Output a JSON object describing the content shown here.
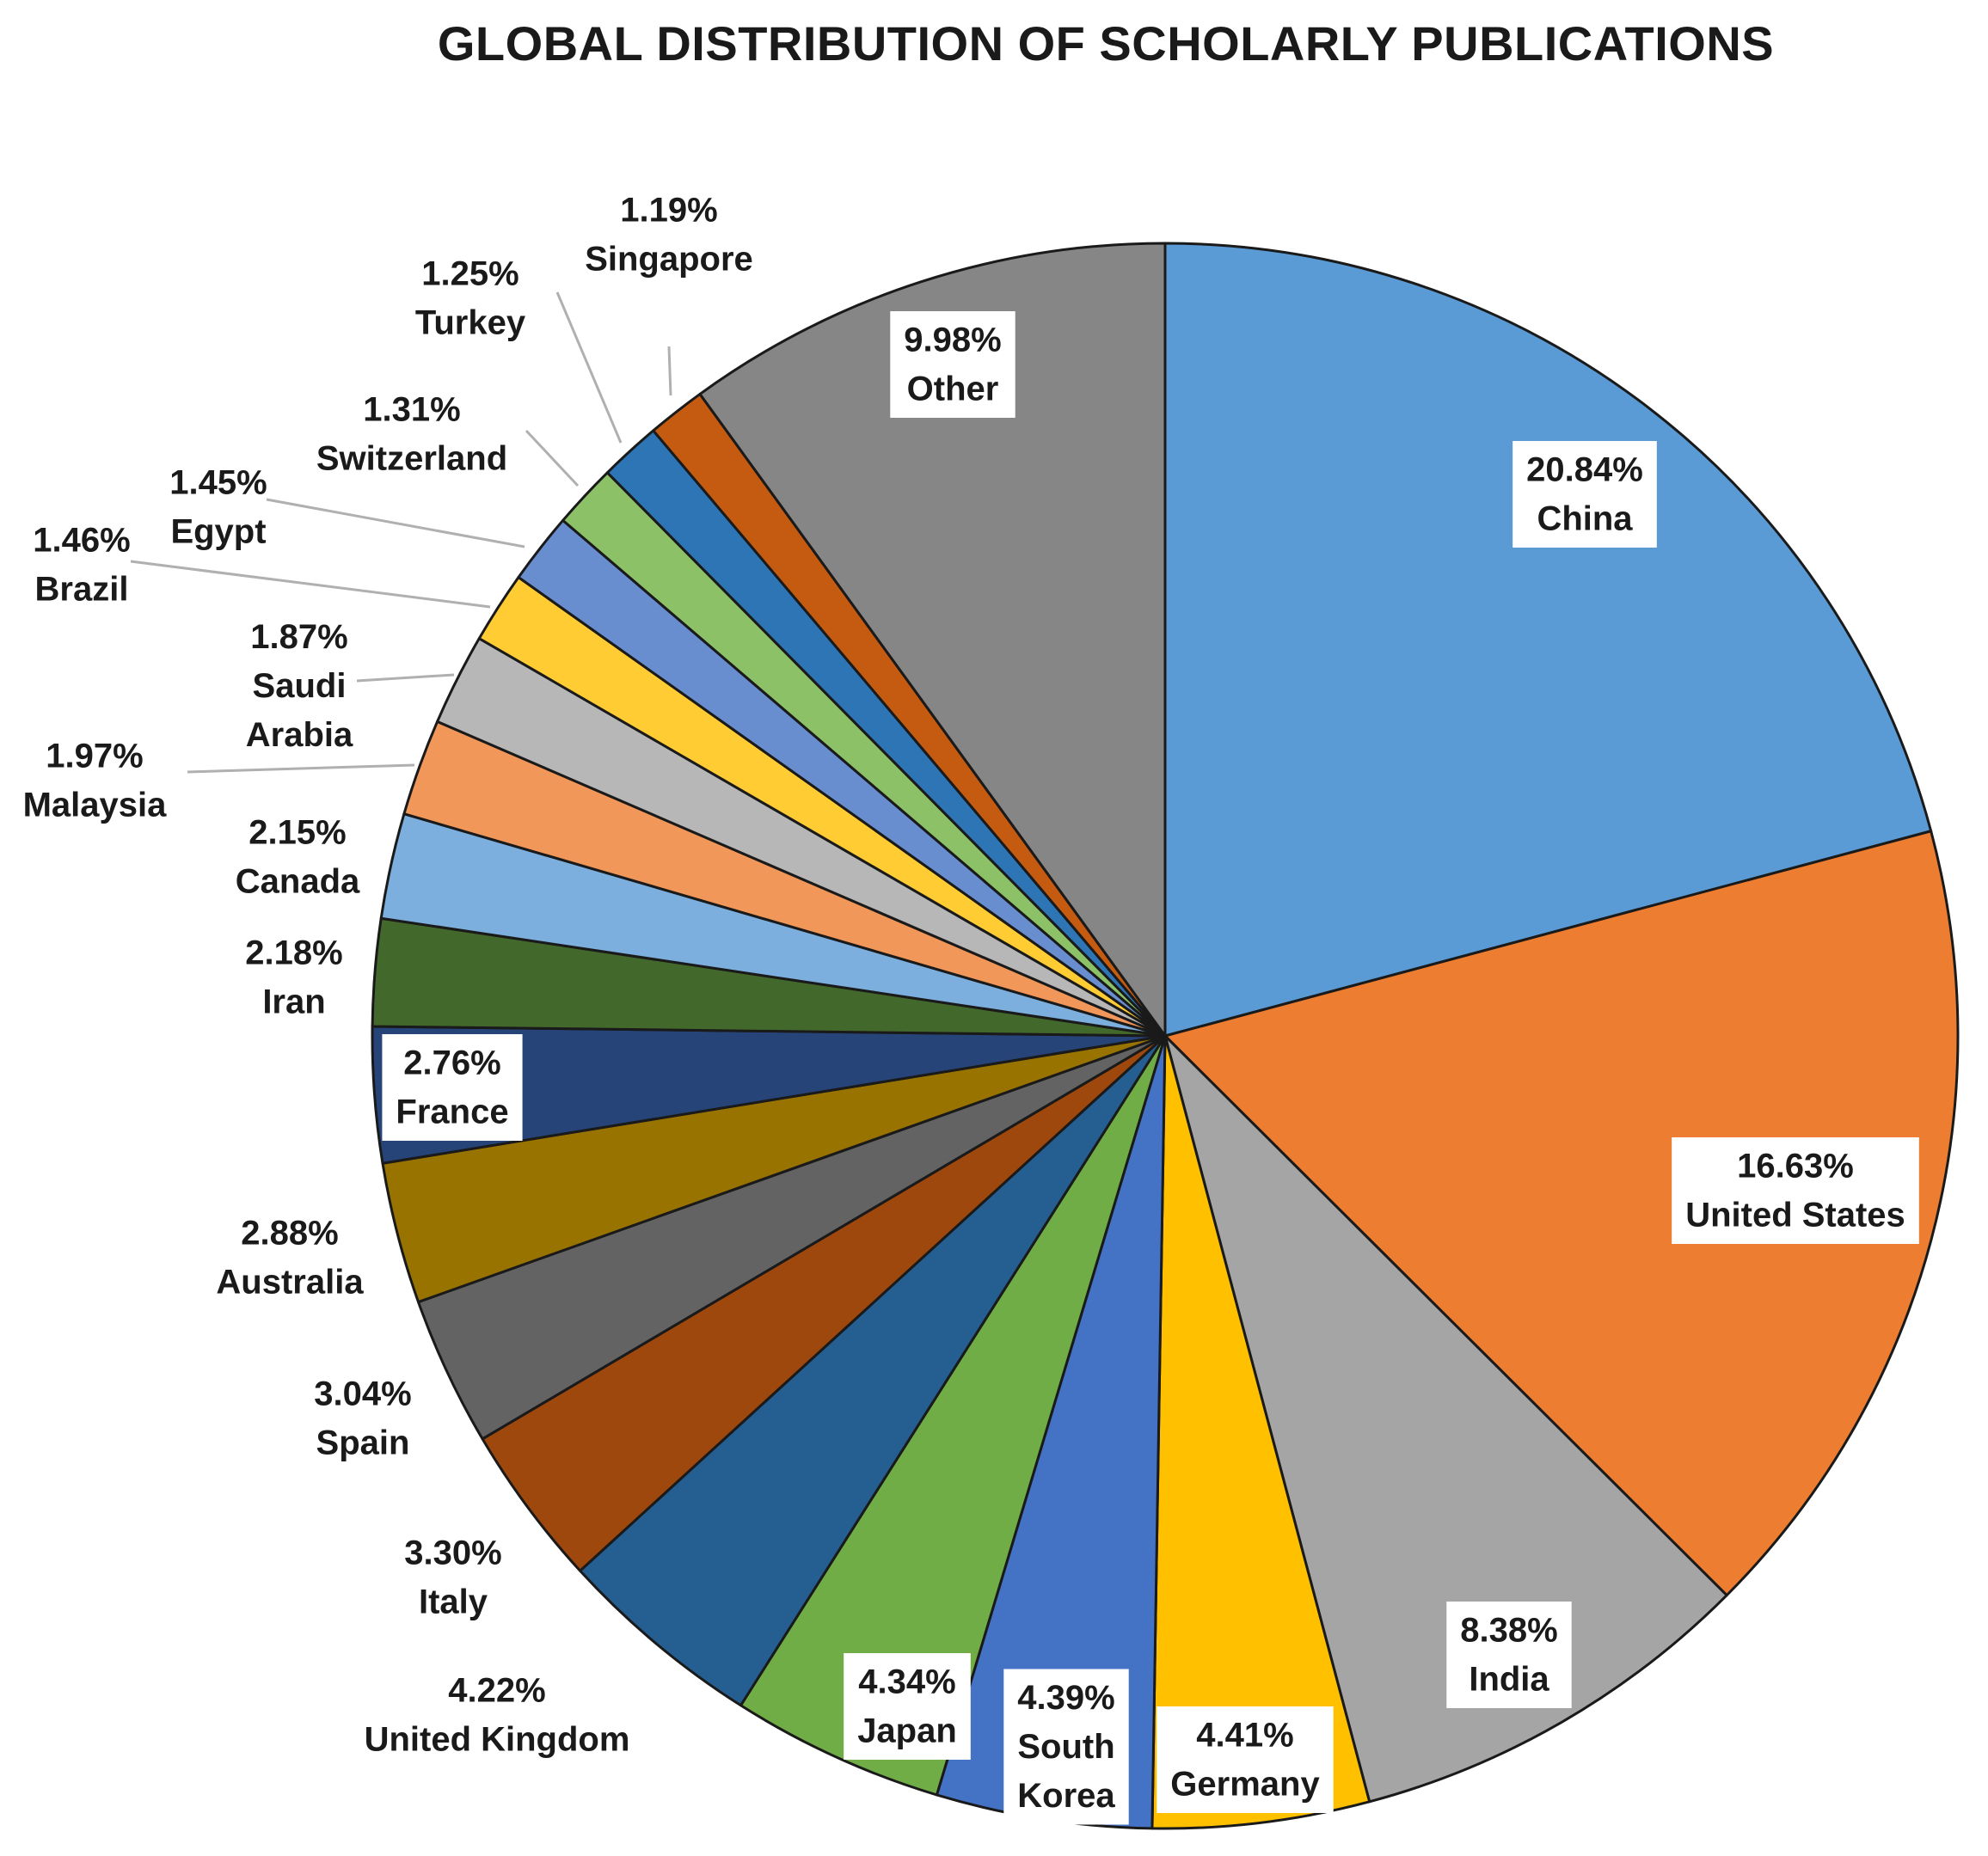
{
  "chart_data": {
    "type": "pie",
    "title": "GLOBAL DISTRIBUTION OF SCHOLARLY PUBLICATIONS",
    "slices": [
      {
        "label": [
          "China"
        ],
        "value": 20.84,
        "value_label": "20.84%",
        "color": "#5B9BD5",
        "boxed": true
      },
      {
        "label": [
          "United States"
        ],
        "value": 16.63,
        "value_label": "16.63%",
        "color": "#ED7D31",
        "boxed": true
      },
      {
        "label": [
          "India"
        ],
        "value": 8.38,
        "value_label": "8.38%",
        "color": "#A5A5A5",
        "boxed": true
      },
      {
        "label": [
          "Germany"
        ],
        "value": 4.41,
        "value_label": "4.41%",
        "color": "#FFC000",
        "boxed": true
      },
      {
        "label": [
          "South",
          "Korea"
        ],
        "value": 4.39,
        "value_label": "4.39%",
        "color": "#4472C4",
        "boxed": true
      },
      {
        "label": [
          "Japan"
        ],
        "value": 4.34,
        "value_label": "4.34%",
        "color": "#70AD47",
        "boxed": true
      },
      {
        "label": [
          "United Kingdom"
        ],
        "value": 4.22,
        "value_label": "4.22%",
        "color": "#255E91",
        "boxed": false
      },
      {
        "label": [
          "Italy"
        ],
        "value": 3.3,
        "value_label": "3.30%",
        "color": "#9E480E",
        "boxed": false
      },
      {
        "label": [
          "Spain"
        ],
        "value": 3.04,
        "value_label": "3.04%",
        "color": "#636363",
        "boxed": false
      },
      {
        "label": [
          "Australia"
        ],
        "value": 2.88,
        "value_label": "2.88%",
        "color": "#997300",
        "boxed": false
      },
      {
        "label": [
          "France"
        ],
        "value": 2.76,
        "value_label": "2.76%",
        "color": "#264478",
        "boxed": true
      },
      {
        "label": [
          "Iran"
        ],
        "value": 2.18,
        "value_label": "2.18%",
        "color": "#43682B",
        "boxed": false
      },
      {
        "label": [
          "Canada"
        ],
        "value": 2.15,
        "value_label": "2.15%",
        "color": "#7CAFDD",
        "boxed": false
      },
      {
        "label": [
          "Malaysia"
        ],
        "value": 1.97,
        "value_label": "1.97%",
        "color": "#F1975A",
        "boxed": false
      },
      {
        "label": [
          "Saudi",
          "Arabia"
        ],
        "value": 1.87,
        "value_label": "1.87%",
        "color": "#B7B7B7",
        "boxed": false
      },
      {
        "label": [
          "Brazil"
        ],
        "value": 1.46,
        "value_label": "1.46%",
        "color": "#FFCD33",
        "boxed": false
      },
      {
        "label": [
          "Egypt"
        ],
        "value": 1.45,
        "value_label": "1.45%",
        "color": "#698ED0",
        "boxed": false
      },
      {
        "label": [
          "Switzerland"
        ],
        "value": 1.31,
        "value_label": "1.31%",
        "color": "#8CC168",
        "boxed": false
      },
      {
        "label": [
          "Turkey"
        ],
        "value": 1.25,
        "value_label": "1.25%",
        "color": "#2E75B6",
        "boxed": false
      },
      {
        "label": [
          "Singapore"
        ],
        "value": 1.19,
        "value_label": "1.19%",
        "color": "#C55A11",
        "boxed": false
      },
      {
        "label": [
          "Other"
        ],
        "value": 9.98,
        "value_label": "9.98%",
        "color": "#868686",
        "boxed": true
      }
    ],
    "start": "12 o'clock",
    "direction": "clockwise",
    "legend": "none"
  }
}
